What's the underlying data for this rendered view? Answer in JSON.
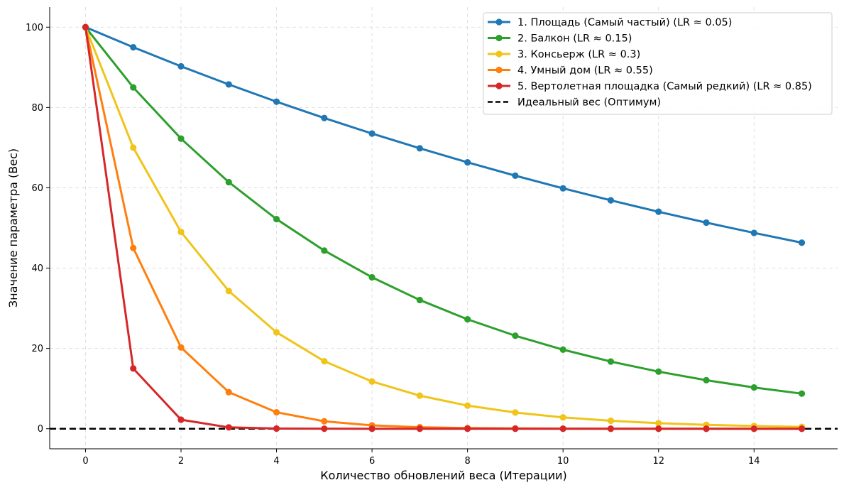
{
  "chart_data": {
    "type": "line",
    "title": "",
    "xlabel": "Количество обновлений веса (Итерации)",
    "ylabel": "Значение параметра (Вес)",
    "xlim": [
      -0.75,
      15.75
    ],
    "ylim": [
      -5,
      105
    ],
    "xticks": [
      0,
      2,
      4,
      6,
      8,
      10,
      12,
      14
    ],
    "yticks": [
      0,
      20,
      40,
      60,
      80,
      100
    ],
    "grid": true,
    "legend_position": "top-right",
    "x": [
      0,
      1,
      2,
      3,
      4,
      5,
      6,
      7,
      8,
      9,
      10,
      11,
      12,
      13,
      14,
      15
    ],
    "series": [
      {
        "name": "1. Площадь (Самый частый) (LR ≈ 0.05)",
        "color": "#1f77b4",
        "values": [
          100,
          95,
          90.25,
          85.74,
          81.45,
          77.38,
          73.51,
          69.83,
          66.34,
          63.02,
          59.87,
          56.88,
          54.04,
          51.33,
          48.77,
          46.33
        ]
      },
      {
        "name": "2. Балкон (LR ≈ 0.15)",
        "color": "#2ca02c",
        "values": [
          100,
          85,
          72.25,
          61.41,
          52.2,
          44.37,
          37.71,
          32.06,
          27.25,
          23.16,
          19.69,
          16.73,
          14.22,
          12.09,
          10.28,
          8.74
        ]
      },
      {
        "name": "3. Консьерж (LR ≈ 0.3)",
        "color": "#f0c419",
        "values": [
          100,
          70,
          49,
          34.3,
          24.01,
          16.81,
          11.76,
          8.24,
          5.76,
          4.04,
          2.82,
          1.98,
          1.38,
          0.97,
          0.68,
          0.47
        ]
      },
      {
        "name": "4. Умный дом (LR ≈ 0.55)",
        "color": "#ff7f0e",
        "values": [
          100,
          45,
          20.25,
          9.11,
          4.1,
          1.85,
          0.83,
          0.37,
          0.17,
          0.08,
          0.03,
          0.02,
          0.01,
          0,
          0,
          0
        ]
      },
      {
        "name": "5. Вертолетная площадка (Самый редкий) (LR ≈ 0.85)",
        "color": "#d62728",
        "values": [
          100,
          15,
          2.25,
          0.34,
          0.05,
          0.01,
          0,
          0,
          0,
          0,
          0,
          0,
          0,
          0,
          0,
          0
        ]
      }
    ],
    "reference_line": {
      "name": "Идеальный вес (Оптимум)",
      "y": 0,
      "color": "#000000",
      "style": "dashed"
    }
  }
}
